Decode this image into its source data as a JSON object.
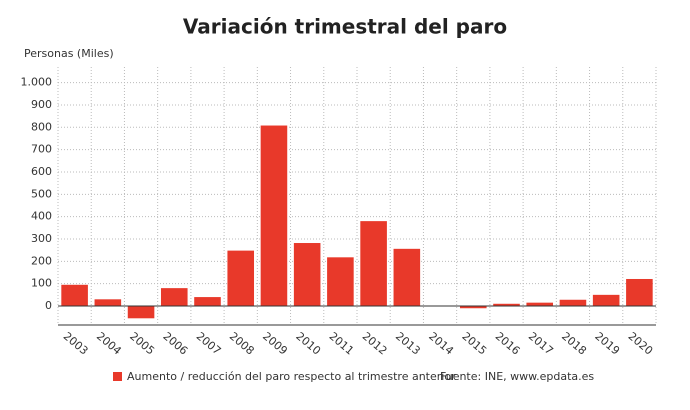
{
  "chart_data": {
    "type": "bar",
    "title": "Variación trimestral del paro",
    "y_label": "Personas (Miles)",
    "categories": [
      "2003",
      "2004",
      "2005",
      "2006",
      "2007",
      "2008",
      "2009",
      "2010",
      "2011",
      "2012",
      "2013",
      "2014",
      "2015",
      "2016",
      "2017",
      "2018",
      "2019",
      "2020"
    ],
    "series": [
      {
        "name": "Aumento / reducción del paro respecto al trimestre anterior",
        "color": "#e8392a",
        "values": [
          95,
          30,
          -55,
          80,
          40,
          248,
          808,
          282,
          218,
          380,
          256,
          0,
          -10,
          10,
          15,
          28,
          50,
          121
        ]
      }
    ],
    "source": "Fuente: INE, www.epdata.es",
    "ylim": [
      -85,
      1070
    ],
    "yticks": [
      0,
      100,
      200,
      300,
      400,
      500,
      600,
      700,
      800,
      900,
      {
        "value": 1000,
        "label": "1.000"
      }
    ],
    "grid": true
  }
}
